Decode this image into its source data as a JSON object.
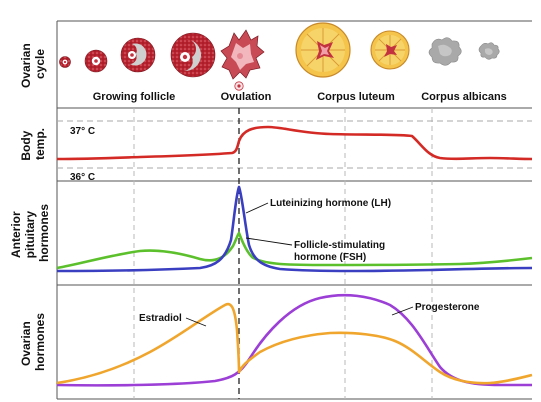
{
  "rows": {
    "ovarian_cycle": {
      "label_line1": "Ovarian",
      "label_line2": "cycle"
    },
    "body_temp": {
      "label_line1": "Body",
      "label_line2": "temp."
    },
    "pituitary": {
      "label_line1": "Anterior",
      "label_line2": "pituitary",
      "label_line3": "hormones"
    },
    "ovarian_hormones": {
      "label_line1": "Ovarian",
      "label_line2": "hormones"
    }
  },
  "stages": {
    "growing_follicle": "Growing follicle",
    "ovulation": "Ovulation",
    "corpus_luteum": "Corpus luteum",
    "corpus_albicans": "Corpus albicans"
  },
  "temperature": {
    "high": "37° C",
    "low": "36° C"
  },
  "curves": {
    "lh": "Luteinizing hormone (LH)",
    "fsh_line1": "Follicle-stimulating",
    "fsh_line2": "hormone (FSH)",
    "estradiol": "Estradiol",
    "progesterone": "Progesterone"
  },
  "colors": {
    "temperature": "#d42a26",
    "lh": "#3a3ec0",
    "fsh": "#5cc02c",
    "estradiol": "#f0a52c",
    "progesterone": "#9b3fd6",
    "follicle": "#c3323f",
    "corpus_luteum": "#f4c54a",
    "corpus_albicans": "#a9a9a9"
  },
  "icons": [
    "follicle-icon",
    "ovulation-icon",
    "corpus-luteum-icon",
    "corpus-albicans-icon"
  ]
}
